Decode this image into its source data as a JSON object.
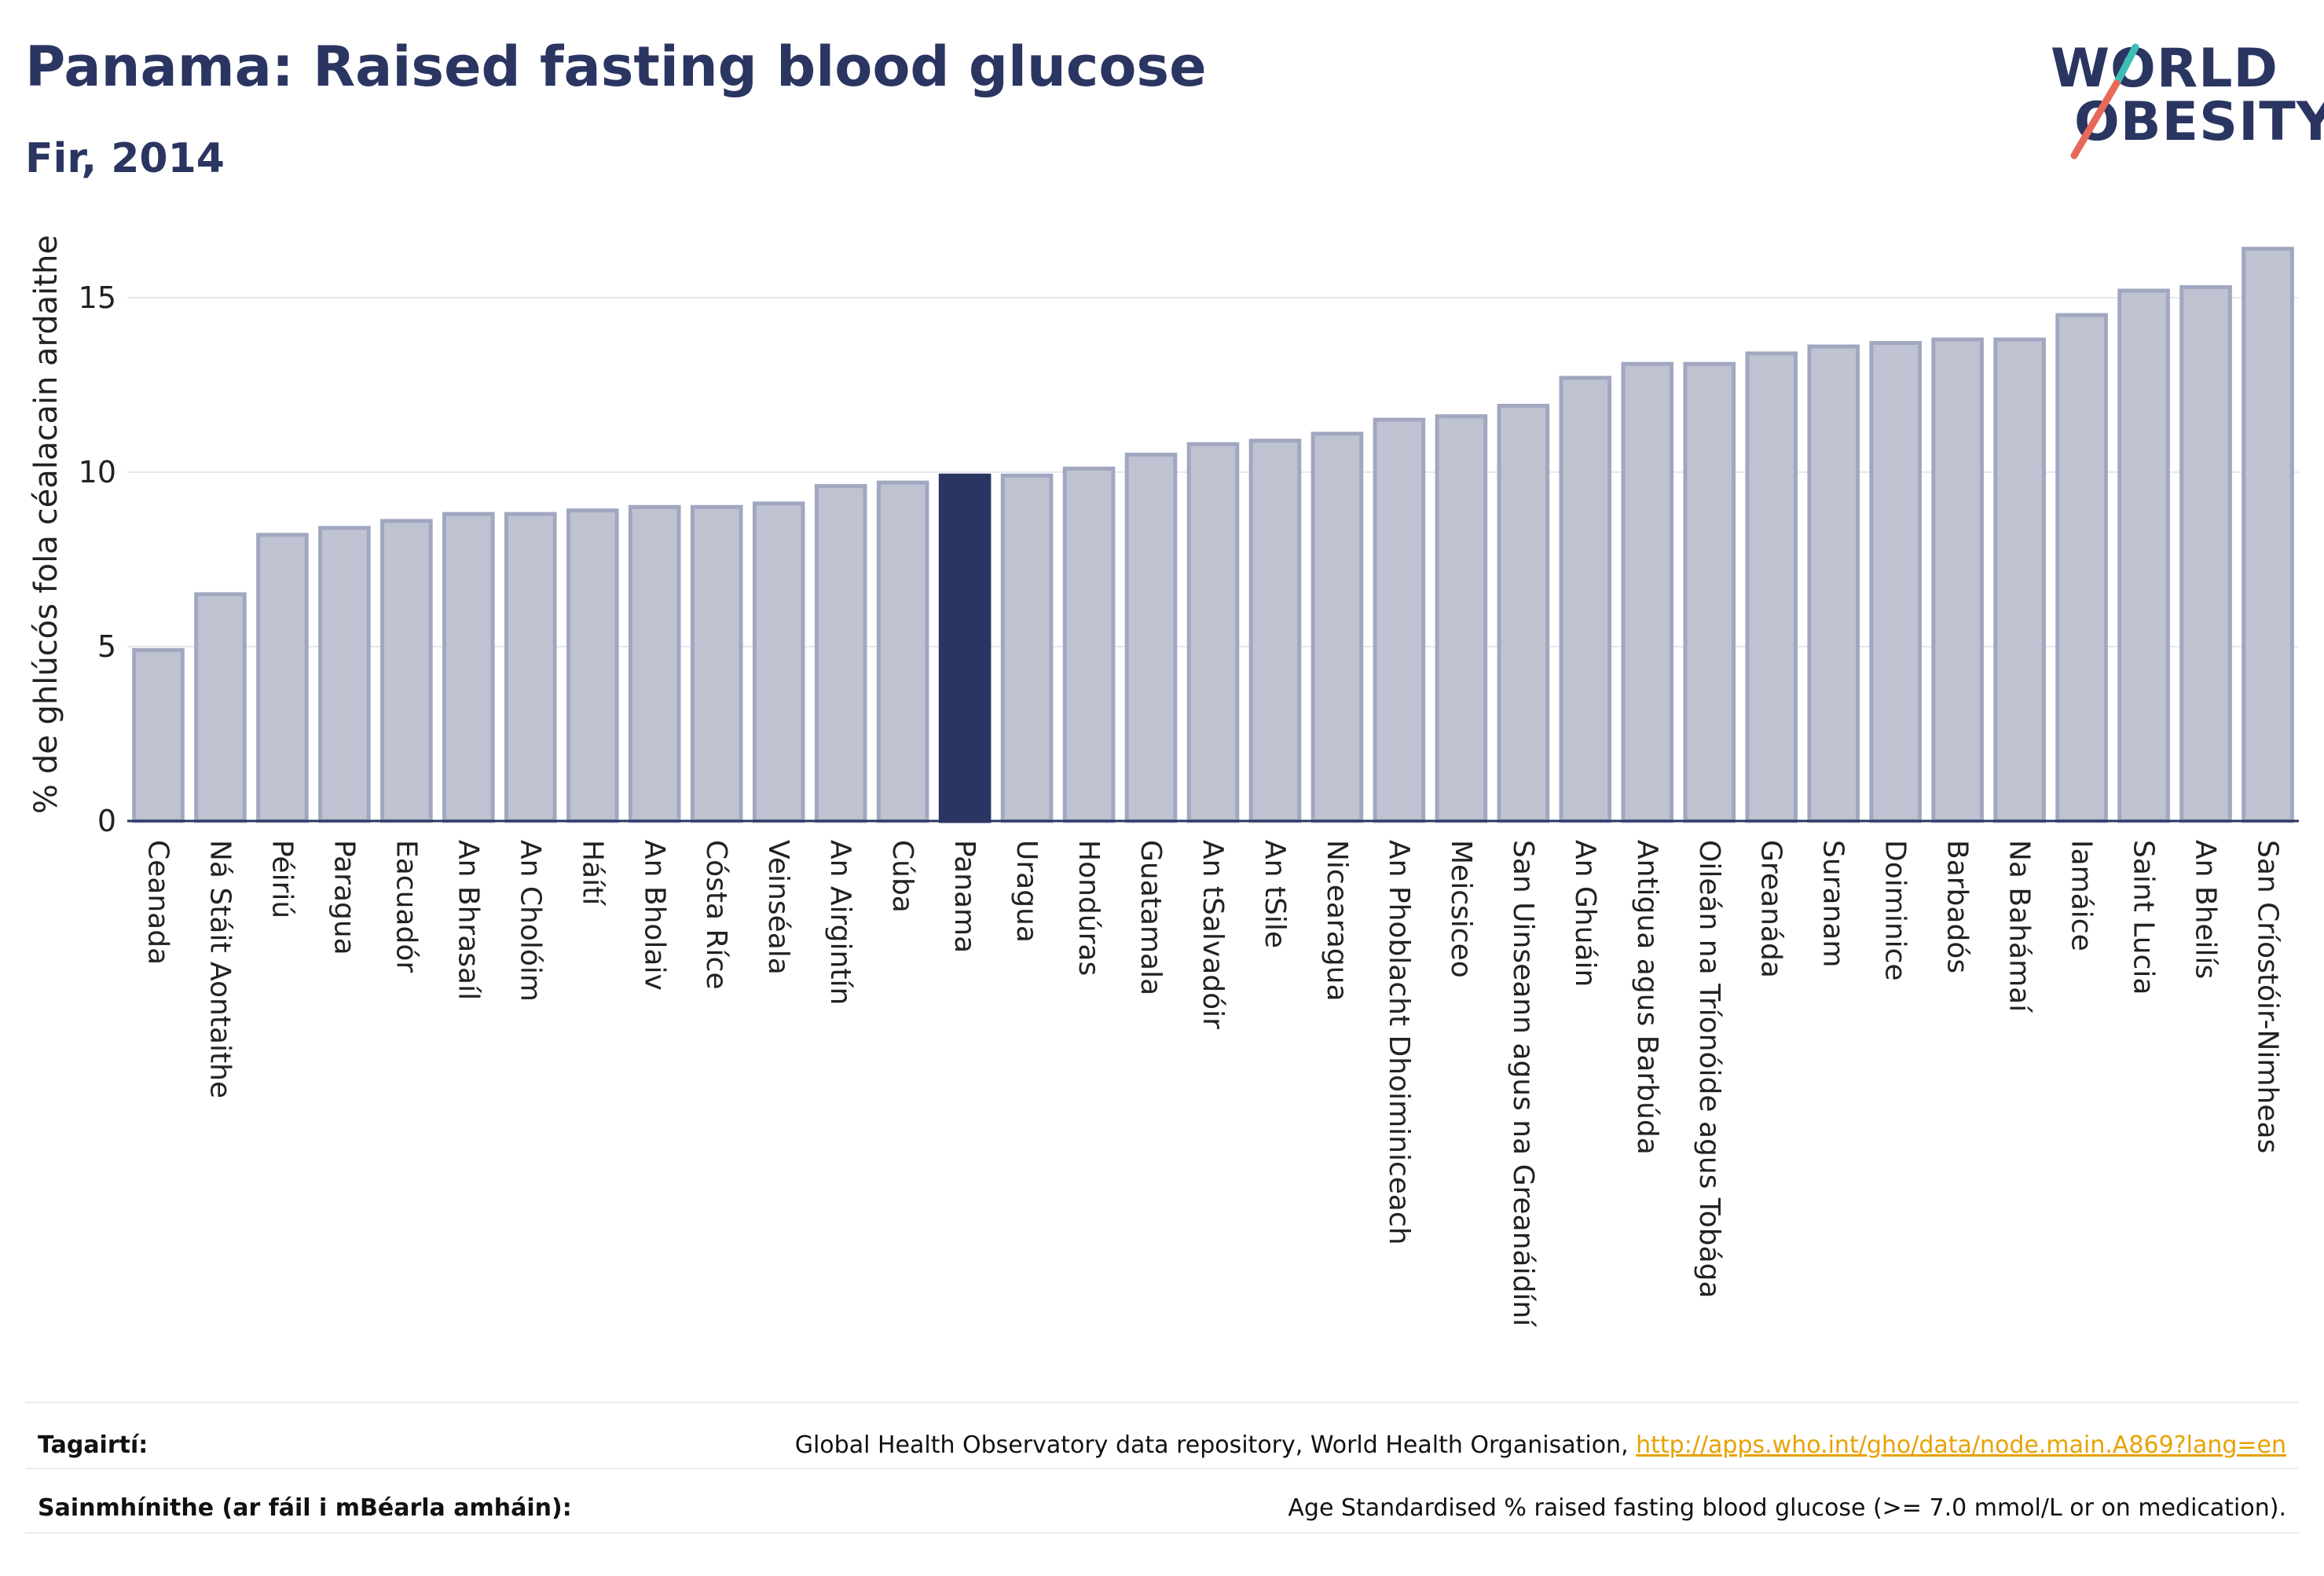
{
  "header": {
    "title": "Panama: Raised fasting blood glucose",
    "subtitle": "Fir, 2014"
  },
  "logo": {
    "line1": "WORLD",
    "line2": "OBESITY"
  },
  "colors": {
    "highlight": "#2a3561",
    "bar_fill": "#bfc3d1",
    "bar_stroke": "#a1a7c0",
    "logo_teal": "#3bbfb5",
    "logo_coral": "#e8685a"
  },
  "chart_data": {
    "type": "bar",
    "ylabel": "% de ghlúcós fola céalacain ardaithe",
    "ylim": [
      0,
      17
    ],
    "yticks": [
      0,
      5,
      10,
      15
    ],
    "grid": true,
    "highlight": "Panama",
    "categories": [
      "Ceanada",
      "Ná Stáit Aontaithe",
      "Péiriú",
      "Paragua",
      "Eacuadór",
      "An Bhrasaíl",
      "An Cholóim",
      "Háítí",
      "An Bholaiv",
      "Cósta Ríce",
      "Veinséala",
      "An Airgintín",
      "Cúba",
      "Panama",
      "Uragua",
      "Hondúras",
      "Guatamala",
      "An tSalvadóir",
      "An tSile",
      "Nicearagua",
      "An Phoblacht Dhoiminiceach",
      "Meicsiceo",
      "San Uinseann agus na Greanáidíní",
      "An Ghuáin",
      "Antigua agus Barbúda",
      "Oileán na Tríonóide agus Tobága",
      "Greanáda",
      "Suranam",
      "Doiminice",
      "Barbadós",
      "Na Bahámaí",
      "Iamáice",
      "Saint Lucia",
      "An Bheilís",
      "San Críostóir-Nimheas"
    ],
    "values": [
      4.9,
      6.5,
      8.2,
      8.4,
      8.6,
      8.8,
      8.8,
      8.9,
      9.0,
      9.0,
      9.1,
      9.6,
      9.7,
      9.9,
      9.9,
      10.1,
      10.5,
      10.8,
      10.9,
      11.1,
      11.5,
      11.6,
      11.9,
      12.7,
      13.1,
      13.1,
      13.4,
      13.6,
      13.7,
      13.8,
      13.8,
      14.5,
      15.2,
      15.3,
      16.4
    ]
  },
  "footer": {
    "references_label": "Tagairtí:",
    "references_text": "Global Health Observatory data repository, World Health Organisation, ",
    "references_link": "http://apps.who.int/gho/data/node.main.A869?lang=en",
    "definitions_label": "Sainmhínithe (ar fáil i mBéarla amháin):",
    "definitions_text": "Age Standardised % raised fasting blood glucose (>= 7.0 mmol/L or on medication)."
  }
}
